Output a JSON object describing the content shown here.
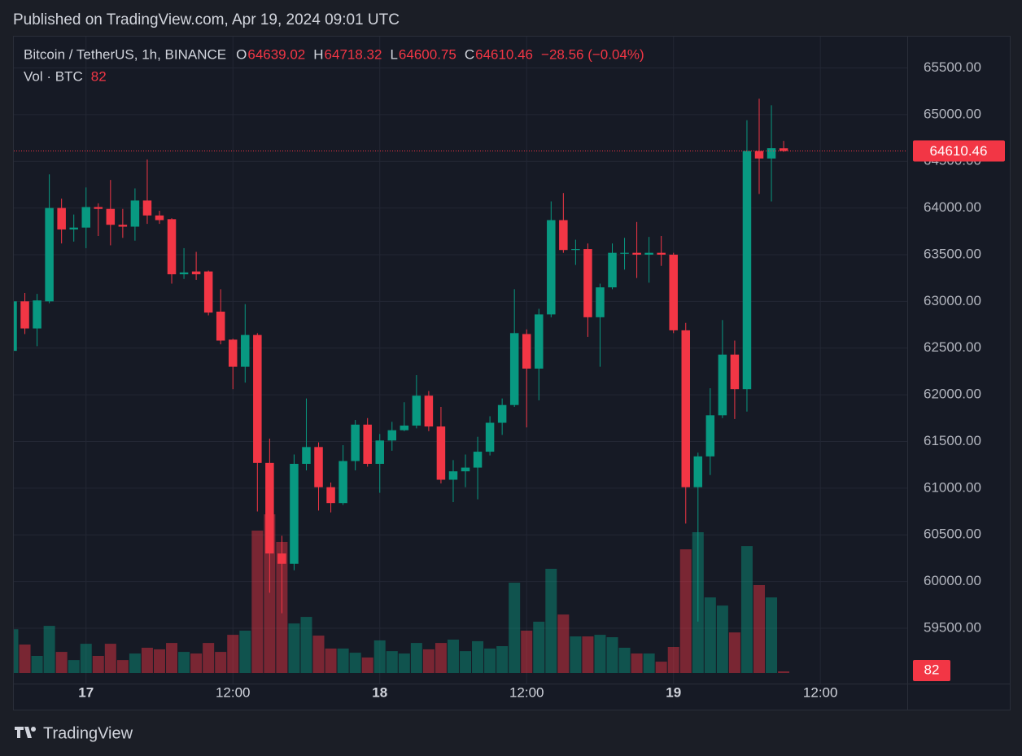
{
  "header": {
    "published": "Published on TradingView.com, Apr 19, 2024 09:01 UTC",
    "brand": "TradingView"
  },
  "chart_data": {
    "type": "candlestick",
    "symbol": "Bitcoin / TetherUS, 1h, BINANCE",
    "ohlc_labels": [
      "O",
      "H",
      "L",
      "C"
    ],
    "change": "−28.56 (−0.04%)",
    "volume_label": "Vol · BTC",
    "up_color": "#089981",
    "down_color": "#f23645",
    "open": [
      62470,
      63000,
      62710,
      63000,
      64000,
      63770,
      63790,
      64010,
      63990,
      63820,
      63800,
      64080,
      63920,
      63880,
      63290,
      63320,
      63320,
      62890,
      62590,
      62300,
      62640,
      61270,
      60300,
      60190,
      61260,
      61440,
      61010,
      60840,
      61290,
      61680,
      61260,
      61510,
      61620,
      61670,
      61990,
      61660,
      61090,
      61180,
      61220,
      61390,
      61700,
      61890,
      62650,
      62280,
      62860,
      63870,
      63550,
      63560,
      62830,
      63150,
      63510,
      63520,
      63500,
      63520,
      63500,
      62690,
      61010,
      61340,
      61780,
      62430,
      62060,
      64610,
      64530,
      64639.02
    ],
    "high": [
      63010,
      63090,
      63080,
      64360,
      64100,
      63930,
      64220,
      64050,
      64300,
      63990,
      64210,
      64520,
      63970,
      63890,
      63570,
      63530,
      63330,
      63130,
      62600,
      62970,
      62660,
      61530,
      60490,
      61360,
      61960,
      61490,
      61060,
      61460,
      61730,
      61750,
      61580,
      61710,
      61920,
      62210,
      62040,
      61870,
      61300,
      61360,
      61550,
      61770,
      61960,
      63130,
      62700,
      62920,
      64070,
      64160,
      63660,
      63620,
      63190,
      63620,
      63680,
      63850,
      63690,
      63700,
      63520,
      62770,
      61380,
      62070,
      62800,
      62580,
      64940,
      65170,
      65100,
      64718.32
    ],
    "low": [
      62400,
      62650,
      62520,
      62980,
      63620,
      63640,
      63570,
      63700,
      63600,
      63680,
      63650,
      63830,
      63830,
      63190,
      63240,
      63230,
      62850,
      62540,
      62060,
      62130,
      60750,
      59880,
      59660,
      60120,
      61190,
      60760,
      60740,
      60820,
      61190,
      61230,
      60950,
      61400,
      61610,
      61640,
      61610,
      61050,
      60850,
      61010,
      60880,
      61350,
      61570,
      61870,
      61650,
      61940,
      62830,
      63520,
      63390,
      62620,
      62300,
      63130,
      63340,
      63250,
      63200,
      63380,
      62660,
      60620,
      59570,
      61140,
      61750,
      61740,
      61820,
      64150,
      64070,
      64600.75
    ],
    "close": [
      63000,
      62710,
      63010,
      64000,
      63770,
      63790,
      64010,
      63990,
      63820,
      63800,
      64080,
      63920,
      63870,
      63290,
      63310,
      63290,
      62880,
      62580,
      62300,
      62640,
      61270,
      60300,
      60190,
      61260,
      61440,
      61010,
      60840,
      61290,
      61680,
      61260,
      61510,
      61620,
      61670,
      61990,
      61660,
      61090,
      61180,
      61220,
      61390,
      61700,
      61890,
      62660,
      62280,
      62860,
      63870,
      63550,
      63560,
      62830,
      63150,
      63520,
      63520,
      63500,
      63520,
      63500,
      62690,
      61010,
      61340,
      61780,
      62430,
      62060,
      64610,
      64530,
      64640,
      64610.46
    ],
    "volume": [
      2200,
      1430,
      860,
      2370,
      1060,
      650,
      1470,
      860,
      1470,
      650,
      980,
      1270,
      1190,
      1510,
      1060,
      980,
      1510,
      1060,
      1920,
      2130,
      7160,
      7980,
      6590,
      2490,
      2820,
      1880,
      1230,
      1230,
      1020,
      780,
      1640,
      1100,
      980,
      1510,
      1190,
      1510,
      1680,
      1100,
      1600,
      1230,
      1350,
      4540,
      2130,
      2580,
      5240,
      2940,
      1840,
      1840,
      1920,
      1800,
      1270,
      980,
      980,
      570,
      1310,
      6220,
      7080,
      3800,
      3390,
      2040,
      6380,
      4420,
      3800,
      82
    ],
    "xlim": [
      0.1,
      73.1
    ],
    "xticks": [
      {
        "value": 6,
        "label": "17"
      },
      {
        "value": 18,
        "label": "12:00"
      },
      {
        "value": 30,
        "label": "18"
      },
      {
        "value": 42,
        "label": "12:00"
      },
      {
        "value": 54,
        "label": "19"
      },
      {
        "value": 66,
        "label": "12:00"
      }
    ],
    "ylim": [
      58907,
      65835
    ],
    "yticks": [
      {
        "value": 59500,
        "label": "59500.00"
      },
      {
        "value": 60000,
        "label": "60000.00"
      },
      {
        "value": 60500,
        "label": "60500.00"
      },
      {
        "value": 61000,
        "label": "61000.00"
      },
      {
        "value": 61500,
        "label": "61500.00"
      },
      {
        "value": 62000,
        "label": "62000.00"
      },
      {
        "value": 62500,
        "label": "62500.00"
      },
      {
        "value": 63000,
        "label": "63000.00"
      },
      {
        "value": 63500,
        "label": "63500.00"
      },
      {
        "value": 64000,
        "label": "64000.00"
      },
      {
        "value": 64500,
        "label": "64500.00"
      },
      {
        "value": 65000,
        "label": "65000.00"
      },
      {
        "value": 65500,
        "label": "65500.00"
      }
    ],
    "y2lim": [
      0,
      32000
    ],
    "grid": true
  }
}
